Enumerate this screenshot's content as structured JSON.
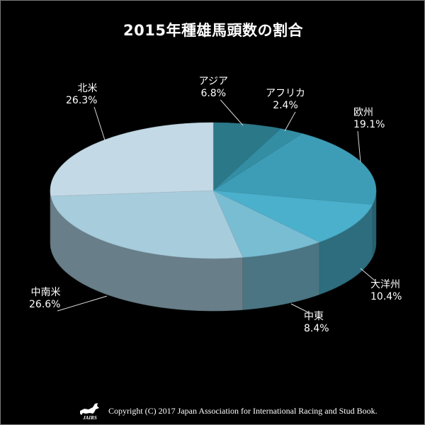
{
  "chart_data": {
    "type": "pie",
    "title": "2015年種雄馬頭数の割合",
    "slices": [
      {
        "name": "アジア",
        "value": 6.8,
        "pct_label": "6.8%",
        "color": "#2b7889"
      },
      {
        "name": "アフリカ",
        "value": 2.4,
        "pct_label": "2.4%",
        "color": "#348ea3"
      },
      {
        "name": "欧州",
        "value": 19.1,
        "pct_label": "19.1%",
        "color": "#3e9db6"
      },
      {
        "name": "大洋州",
        "value": 10.4,
        "pct_label": "10.4%",
        "color": "#4ab0cc"
      },
      {
        "name": "中東",
        "value": 8.4,
        "pct_label": "8.4%",
        "color": "#79bdd3"
      },
      {
        "name": "中南米",
        "value": 26.6,
        "pct_label": "26.6%",
        "color": "#a7ccdc"
      },
      {
        "name": "北米",
        "value": 26.3,
        "pct_label": "26.3%",
        "color": "#c3dae6"
      }
    ]
  },
  "footer": {
    "logo_text": "JAIRS",
    "copyright": "Copyright (C) 2017 Japan Association for International Racing and Stud Book."
  }
}
